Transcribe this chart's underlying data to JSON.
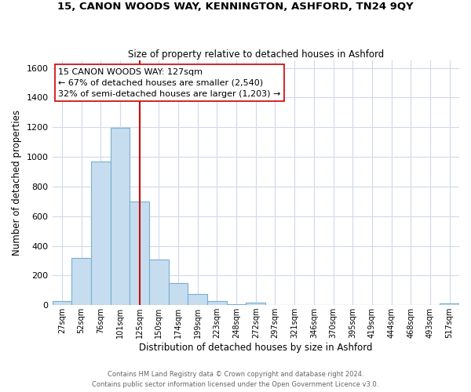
{
  "title1": "15, CANON WOODS WAY, KENNINGTON, ASHFORD, TN24 9QY",
  "title2": "Size of property relative to detached houses in Ashford",
  "xlabel": "Distribution of detached houses by size in Ashford",
  "ylabel": "Number of detached properties",
  "bar_labels": [
    "27sqm",
    "52sqm",
    "76sqm",
    "101sqm",
    "125sqm",
    "150sqm",
    "174sqm",
    "199sqm",
    "223sqm",
    "248sqm",
    "272sqm",
    "297sqm",
    "321sqm",
    "346sqm",
    "370sqm",
    "395sqm",
    "419sqm",
    "444sqm",
    "468sqm",
    "493sqm",
    "517sqm"
  ],
  "bar_values": [
    27,
    320,
    970,
    1195,
    700,
    310,
    150,
    75,
    25,
    5,
    15,
    0,
    0,
    0,
    0,
    0,
    0,
    0,
    0,
    0,
    10
  ],
  "bar_color": "#c6ddf0",
  "bar_edge_color": "#7aaed0",
  "vline_x": 4,
  "vline_color": "#cc0000",
  "ylim": [
    0,
    1650
  ],
  "yticks": [
    0,
    200,
    400,
    600,
    800,
    1000,
    1200,
    1400,
    1600
  ],
  "annotation_title": "15 CANON WOODS WAY: 127sqm",
  "annotation_line1": "← 67% of detached houses are smaller (2,540)",
  "annotation_line2": "32% of semi-detached houses are larger (1,203) →",
  "annotation_box_color": "#ffffff",
  "annotation_box_edge": "#cc0000",
  "footer1": "Contains HM Land Registry data © Crown copyright and database right 2024.",
  "footer2": "Contains public sector information licensed under the Open Government Licence v3.0.",
  "background_color": "#ffffff",
  "grid_color": "#d0d8ec"
}
